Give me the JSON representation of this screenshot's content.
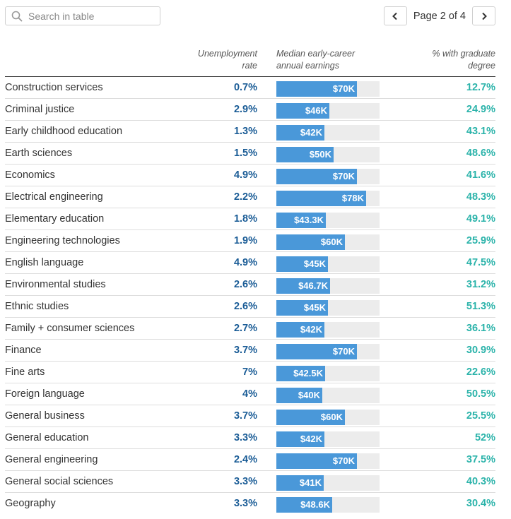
{
  "search": {
    "placeholder": "Search in table"
  },
  "pager": {
    "label": "Page 2 of 4"
  },
  "columns": {
    "major": "",
    "unemployment": "Unemployment\nrate",
    "earnings": "Median early-career\nannual earnings",
    "graduate": "% with graduate\ndegree"
  },
  "colors": {
    "bar": "#4a98d9",
    "bar_track": "#ececec",
    "unemployment_text": "#1a5c96",
    "graduate_text": "#2bb3aa"
  },
  "chart_data": {
    "type": "table",
    "earnings_scale_max": 90000,
    "rows": [
      {
        "major": "Construction services",
        "unemployment": "0.7%",
        "earnings": 70000,
        "earnings_label": "$70K",
        "graduate": "12.7%"
      },
      {
        "major": "Criminal justice",
        "unemployment": "2.9%",
        "earnings": 46000,
        "earnings_label": "$46K",
        "graduate": "24.9%"
      },
      {
        "major": "Early childhood education",
        "unemployment": "1.3%",
        "earnings": 42000,
        "earnings_label": "$42K",
        "graduate": "43.1%"
      },
      {
        "major": "Earth sciences",
        "unemployment": "1.5%",
        "earnings": 50000,
        "earnings_label": "$50K",
        "graduate": "48.6%"
      },
      {
        "major": "Economics",
        "unemployment": "4.9%",
        "earnings": 70000,
        "earnings_label": "$70K",
        "graduate": "41.6%"
      },
      {
        "major": "Electrical engineering",
        "unemployment": "2.2%",
        "earnings": 78000,
        "earnings_label": "$78K",
        "graduate": "48.3%"
      },
      {
        "major": "Elementary education",
        "unemployment": "1.8%",
        "earnings": 43300,
        "earnings_label": "$43.3K",
        "graduate": "49.1%"
      },
      {
        "major": "Engineering technologies",
        "unemployment": "1.9%",
        "earnings": 60000,
        "earnings_label": "$60K",
        "graduate": "25.9%"
      },
      {
        "major": "English language",
        "unemployment": "4.9%",
        "earnings": 45000,
        "earnings_label": "$45K",
        "graduate": "47.5%"
      },
      {
        "major": "Environmental studies",
        "unemployment": "2.6%",
        "earnings": 46700,
        "earnings_label": "$46.7K",
        "graduate": "31.2%"
      },
      {
        "major": "Ethnic studies",
        "unemployment": "2.6%",
        "earnings": 45000,
        "earnings_label": "$45K",
        "graduate": "51.3%"
      },
      {
        "major": "Family + consumer sciences",
        "unemployment": "2.7%",
        "earnings": 42000,
        "earnings_label": "$42K",
        "graduate": "36.1%"
      },
      {
        "major": "Finance",
        "unemployment": "3.7%",
        "earnings": 70000,
        "earnings_label": "$70K",
        "graduate": "30.9%"
      },
      {
        "major": "Fine arts",
        "unemployment": "7%",
        "earnings": 42500,
        "earnings_label": "$42.5K",
        "graduate": "22.6%"
      },
      {
        "major": "Foreign language",
        "unemployment": "4%",
        "earnings": 40000,
        "earnings_label": "$40K",
        "graduate": "50.5%"
      },
      {
        "major": "General business",
        "unemployment": "3.7%",
        "earnings": 60000,
        "earnings_label": "$60K",
        "graduate": "25.5%"
      },
      {
        "major": "General education",
        "unemployment": "3.3%",
        "earnings": 42000,
        "earnings_label": "$42K",
        "graduate": "52%"
      },
      {
        "major": "General engineering",
        "unemployment": "2.4%",
        "earnings": 70000,
        "earnings_label": "$70K",
        "graduate": "37.5%"
      },
      {
        "major": "General social sciences",
        "unemployment": "3.3%",
        "earnings": 41000,
        "earnings_label": "$41K",
        "graduate": "40.3%"
      },
      {
        "major": "Geography",
        "unemployment": "3.3%",
        "earnings": 48600,
        "earnings_label": "$48.6K",
        "graduate": "30.4%"
      }
    ]
  }
}
